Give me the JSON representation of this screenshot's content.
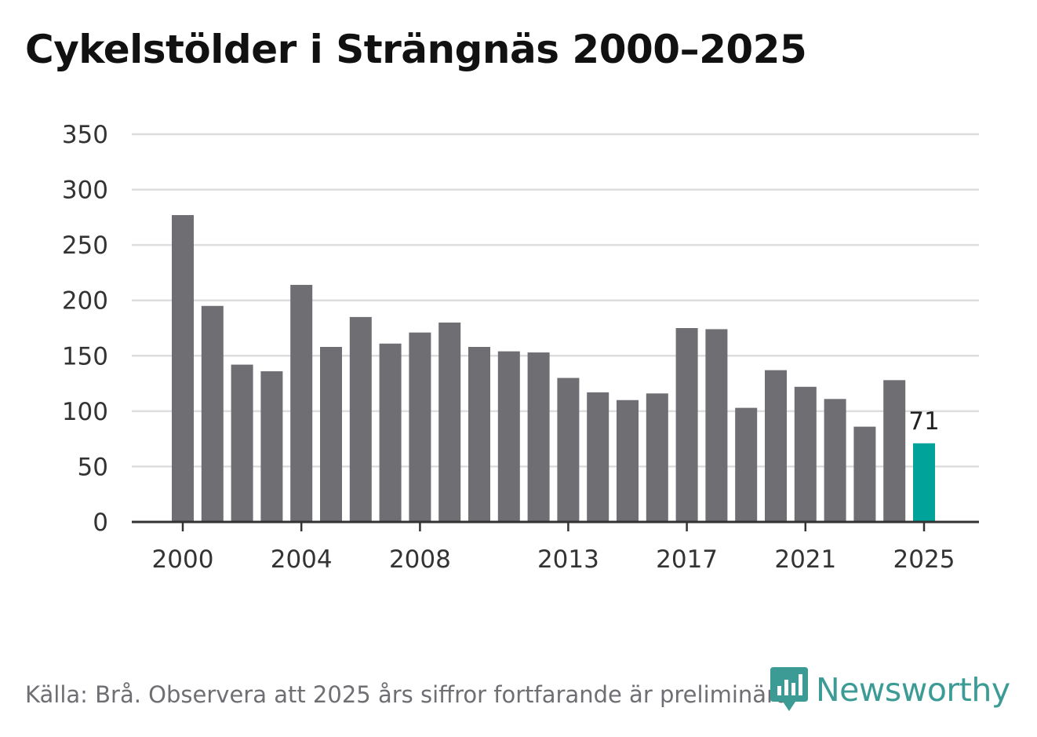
{
  "title": "Cykelstölder i Strängnäs 2000–2025",
  "footer": "Källa: Brå. Observera att 2025 års siffror fortfarande är preliminära.",
  "brand": {
    "name": "Newsworthy",
    "icon": "newsworthy-logo-icon",
    "color": "#3d9b95"
  },
  "colors": {
    "bar": "#6e6e73",
    "highlight": "#00a39a",
    "grid": "#dddddd",
    "axis": "#333333"
  },
  "chart_data": {
    "type": "bar",
    "title": "Cykelstölder i Strängnäs 2000–2025",
    "xlabel": "",
    "ylabel": "",
    "ylim": [
      0,
      350
    ],
    "yticks": [
      0,
      50,
      100,
      150,
      200,
      250,
      300,
      350
    ],
    "grid": true,
    "categories": [
      2000,
      2001,
      2002,
      2003,
      2004,
      2005,
      2006,
      2007,
      2008,
      2009,
      2010,
      2011,
      2012,
      2013,
      2014,
      2015,
      2016,
      2017,
      2018,
      2019,
      2020,
      2021,
      2022,
      2023,
      2024,
      2025
    ],
    "values": [
      277,
      195,
      142,
      136,
      214,
      158,
      185,
      161,
      171,
      180,
      158,
      154,
      153,
      130,
      117,
      110,
      116,
      175,
      174,
      103,
      137,
      122,
      111,
      86,
      128,
      71
    ],
    "xtick_labels": [
      "2000",
      "2004",
      "2008",
      "2013",
      "2017",
      "2021",
      "2025"
    ],
    "highlight": {
      "category": 2025,
      "label": "71"
    }
  }
}
